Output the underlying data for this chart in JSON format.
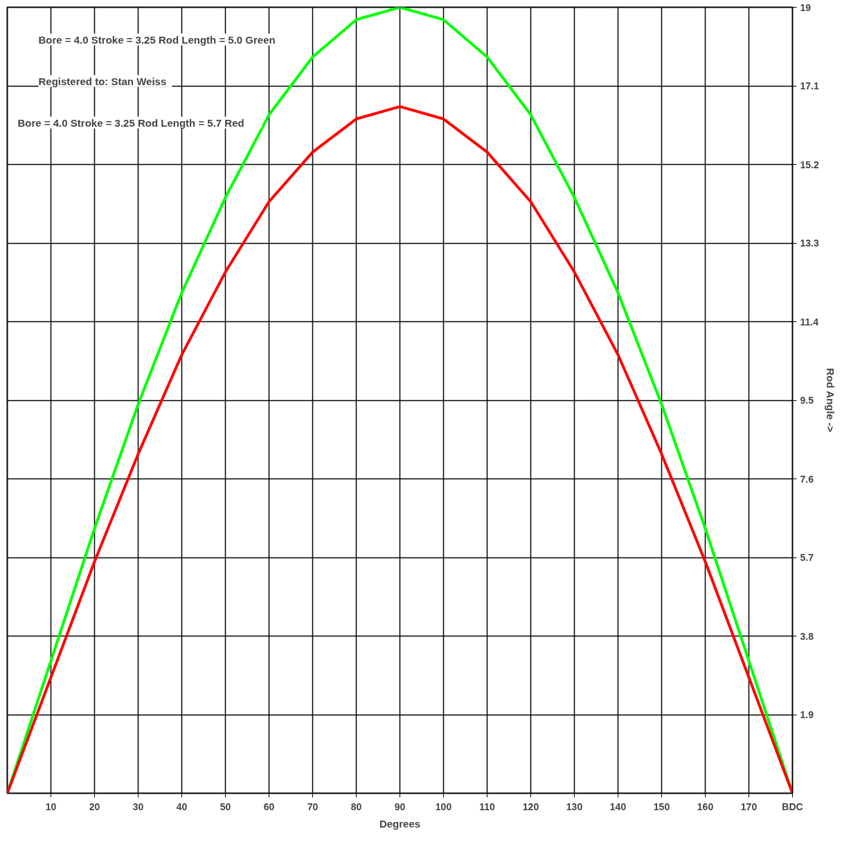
{
  "chart_data": {
    "type": "line",
    "xlabel": "Degrees",
    "ylabel": "Rod Angle ->",
    "annotations": [
      "Bore = 4.0   Stroke = 3.25   Rod Length = 5.0   Green",
      "Registered to:   Stan Weiss",
      "Bore = 4.0   Stroke = 3.25   Rod Length = 5.7   Red"
    ],
    "x": [
      0,
      10,
      20,
      30,
      40,
      50,
      60,
      70,
      80,
      90,
      100,
      110,
      120,
      130,
      140,
      150,
      160,
      170,
      180
    ],
    "series": [
      {
        "color": "#00ff00",
        "values": [
          0,
          3.2,
          6.4,
          9.4,
          12.1,
          14.4,
          16.4,
          17.8,
          18.7,
          19.0,
          18.7,
          17.8,
          16.4,
          14.4,
          12.1,
          9.4,
          6.4,
          3.2,
          0
        ]
      },
      {
        "color": "#ff0000",
        "values": [
          0,
          2.8,
          5.6,
          8.2,
          10.6,
          12.6,
          14.3,
          15.5,
          16.3,
          16.6,
          16.3,
          15.5,
          14.3,
          12.6,
          10.6,
          8.2,
          5.6,
          2.8,
          0
        ]
      }
    ],
    "xlim": [
      0,
      180
    ],
    "ylim": [
      0,
      19
    ],
    "xticks": [
      10,
      20,
      30,
      40,
      50,
      60,
      70,
      80,
      90,
      100,
      110,
      120,
      130,
      140,
      150,
      160,
      170,
      {
        "value": 180,
        "label": "BDC"
      }
    ],
    "yticks": [
      1.9,
      3.8,
      5.7,
      7.6,
      9.5,
      11.4,
      13.3,
      15.2,
      17.1,
      19
    ],
    "grid": true,
    "marker": "none",
    "line_style": "solid"
  }
}
